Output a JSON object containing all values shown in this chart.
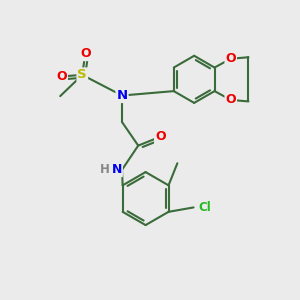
{
  "bg_color": "#ebebeb",
  "bond_color": "#3a6b3a",
  "bond_width": 1.5,
  "atom_colors": {
    "N": "#0000ee",
    "O": "#ee0000",
    "S": "#bbbb00",
    "Cl": "#22bb22",
    "C": "#000000",
    "H": "#888888"
  },
  "font_size": 8.5,
  "fig_size": [
    3.0,
    3.0
  ],
  "dpi": 100,
  "xlim": [
    0,
    10
  ],
  "ylim": [
    0,
    10
  ]
}
